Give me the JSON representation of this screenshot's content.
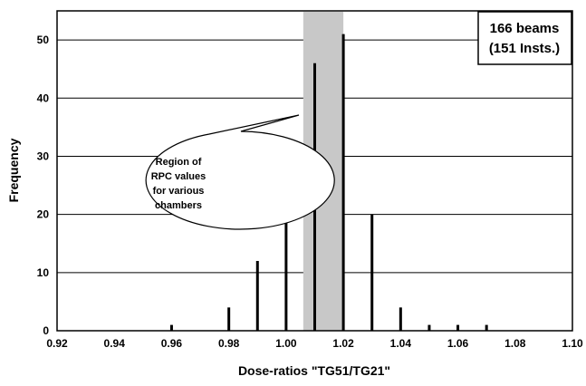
{
  "chart_data": {
    "type": "bar",
    "xlabel": "Dose-ratios \"TG51/TG21\"",
    "ylabel": "Frequency",
    "xlim": [
      0.92,
      1.1
    ],
    "ylim": [
      0,
      55
    ],
    "xticks": [
      "0.92",
      "0.94",
      "0.96",
      "0.98",
      "1.00",
      "1.02",
      "1.04",
      "1.06",
      "1.08",
      "1.10"
    ],
    "yticks": [
      "0",
      "10",
      "20",
      "30",
      "40",
      "50"
    ],
    "grid": true,
    "points": [
      {
        "x": 0.96,
        "y": 1
      },
      {
        "x": 0.98,
        "y": 4
      },
      {
        "x": 0.99,
        "y": 12
      },
      {
        "x": 1.0,
        "y": 25
      },
      {
        "x": 1.01,
        "y": 46
      },
      {
        "x": 1.02,
        "y": 51
      },
      {
        "x": 1.03,
        "y": 20
      },
      {
        "x": 1.04,
        "y": 4
      },
      {
        "x": 1.05,
        "y": 1
      },
      {
        "x": 1.06,
        "y": 1
      },
      {
        "x": 1.07,
        "y": 1
      }
    ],
    "shaded_region": {
      "x_start": 1.006,
      "x_end": 1.02,
      "color": "#c8c8c8"
    },
    "annotation": {
      "lines": [
        "Region of",
        "RPC values",
        "for various",
        "chambers"
      ]
    },
    "legend_box": {
      "lines": [
        "166 beams",
        "(151 Insts.)"
      ],
      "placement": "top-right"
    }
  }
}
